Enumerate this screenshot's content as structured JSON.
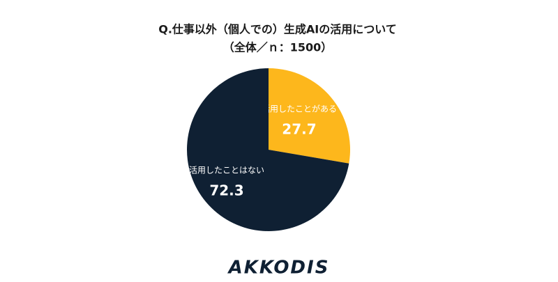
{
  "chart_data": {
    "type": "pie",
    "title": "Q.仕事以外（個人での）生成AIの活用について",
    "subtitle": "（全体／ｎ：1500）",
    "categories": [
      "活用したことがある",
      "活用したことはない"
    ],
    "values": [
      27.7,
      72.3
    ],
    "colors": [
      "#fdb71c",
      "#0f2033"
    ]
  },
  "logo": "AKKODIS"
}
